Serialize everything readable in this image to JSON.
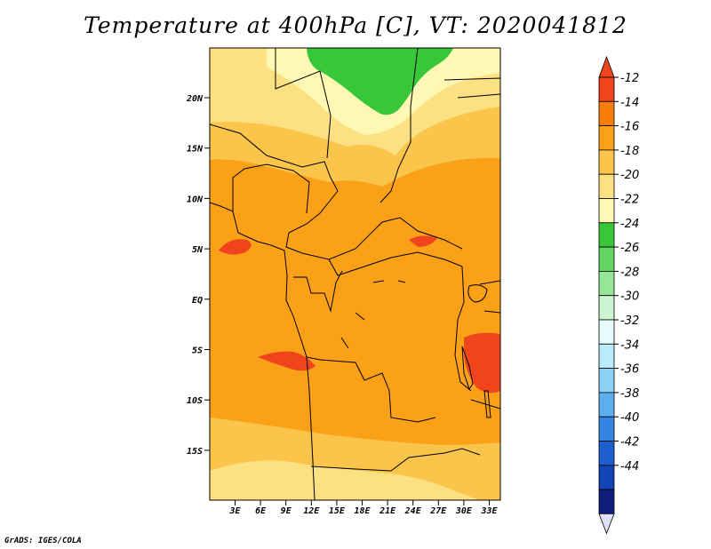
{
  "title": "Temperature at 400hPa [C], VT: 2020041812",
  "credit": "GrADS: IGES/COLA",
  "lat_labels": [
    "20N",
    "15N",
    "10N",
    "5N",
    "EQ",
    "5S",
    "10S",
    "15S"
  ],
  "lon_labels": [
    "3E",
    "6E",
    "9E",
    "12E",
    "15E",
    "18E",
    "21E",
    "24E",
    "27E",
    "30E",
    "33E"
  ],
  "colorbar": {
    "levels": [
      "-12",
      "-14",
      "-16",
      "-18",
      "-20",
      "-22",
      "-24",
      "-26",
      "-28",
      "-30",
      "-32",
      "-34",
      "-36",
      "-38",
      "-40",
      "-42",
      "-44"
    ],
    "colors": [
      "#f0441c",
      "#fa7d0a",
      "#fba118",
      "#fbc44a",
      "#fce182",
      "#fef8b4",
      "#37c738",
      "#62d562",
      "#96e697",
      "#cbf4d0",
      "#e6fcfd",
      "#b9ebfb",
      "#8cd0f6",
      "#5dafee",
      "#3485e1",
      "#1c5fcf",
      "#1443b6",
      "#0f1c7b"
    ],
    "top_color": "#f0441c",
    "bottom_color": "#e0e0f7"
  },
  "map_fill": {
    "base": "#fba118",
    "warm_band": "#fbc44a",
    "pale_band": "#fce182",
    "lightest": "#fef8b4",
    "cold_region": "#37c738",
    "hot_spots": "#f0441c"
  }
}
